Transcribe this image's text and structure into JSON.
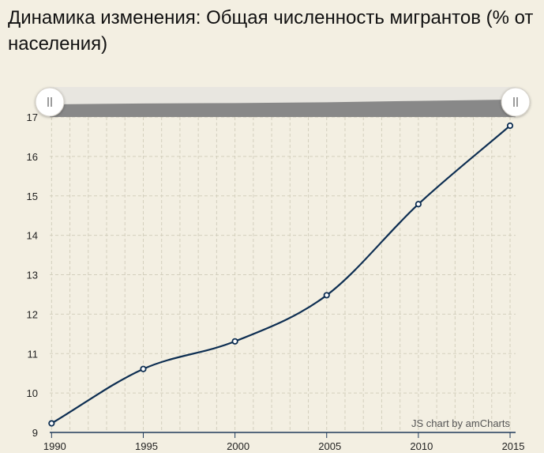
{
  "chart_data": {
    "type": "line",
    "title": "Динамика изменения: Общая численность мигрантов (% от населения)",
    "xlabel": "",
    "ylabel": "",
    "x_tick_labels": [
      "1990",
      "1995",
      "2000",
      "2005",
      "2010",
      "2015"
    ],
    "y_tick_labels": [
      "9",
      "10",
      "11",
      "12",
      "13",
      "14",
      "15",
      "16",
      "17"
    ],
    "xlim": [
      1989.9,
      2015.3
    ],
    "ylim": [
      9,
      17
    ],
    "grid": true,
    "series": [
      {
        "x": [
          1990,
          1995,
          2000,
          2005,
          2010,
          2015
        ],
        "values": [
          9.23,
          10.61,
          11.31,
          12.48,
          14.79,
          16.78
        ]
      }
    ],
    "colors": {
      "line": "#0d2e52",
      "grid": "#d3cfbd",
      "axis": "#1f3a5a",
      "scrollbar_track": "#e8e6e0",
      "scrollbar_fill": "#888888"
    },
    "watermark": "JS chart by amCharts"
  }
}
